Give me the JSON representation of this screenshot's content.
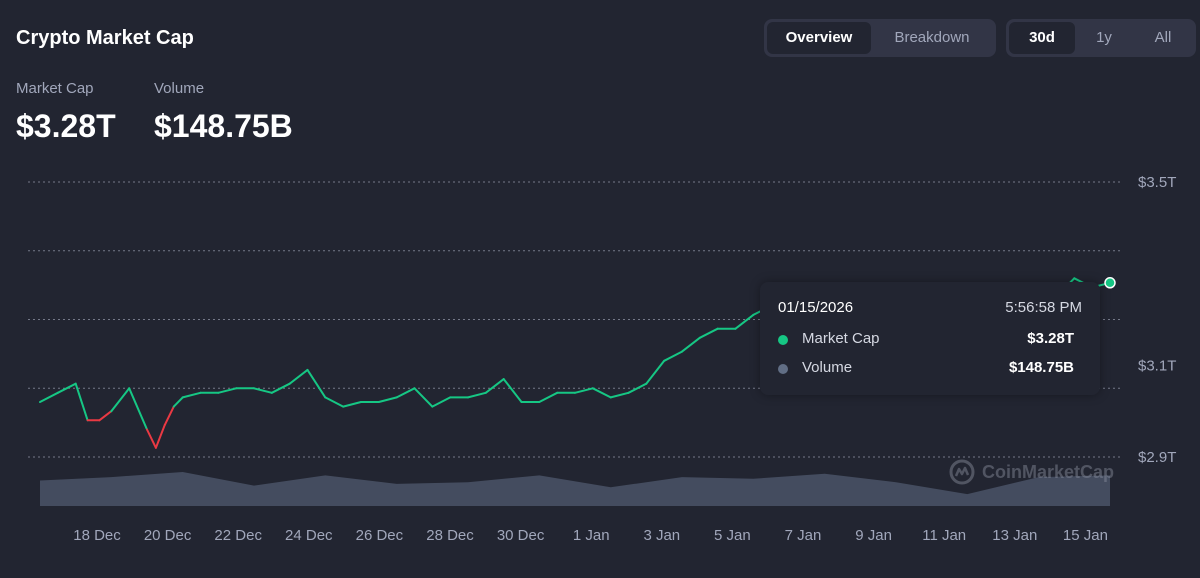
{
  "header": {
    "title": "Crypto Market Cap",
    "view_tabs": [
      {
        "label": "Overview",
        "active": true
      },
      {
        "label": "Breakdown",
        "active": false
      }
    ],
    "range_tabs": [
      {
        "label": "30d",
        "active": true
      },
      {
        "label": "1y",
        "active": false
      },
      {
        "label": "All",
        "active": false
      }
    ]
  },
  "stats": {
    "market_cap_label": "Market Cap",
    "market_cap_value": "$3.28T",
    "volume_label": "Volume",
    "volume_value": "$148.75B"
  },
  "tooltip": {
    "date": "01/15/2026",
    "time": "5:56:58 PM",
    "rows": [
      {
        "name": "Market Cap",
        "value": "$3.28T",
        "color": "#16c784"
      },
      {
        "name": "Volume",
        "value": "$148.75B",
        "color": "#616e85"
      }
    ]
  },
  "watermark": {
    "text": "CoinMarketCap"
  },
  "colors": {
    "up": "#16c784",
    "down": "#ea3943",
    "volume": "#616e85",
    "grid": "#8a8f9f",
    "background": "#222531"
  },
  "chart_data": {
    "type": "line",
    "x_tick_labels": [
      "18 Dec",
      "20 Dec",
      "22 Dec",
      "24 Dec",
      "26 Dec",
      "28 Dec",
      "30 Dec",
      "1 Jan",
      "3 Jan",
      "5 Jan",
      "7 Jan",
      "9 Jan",
      "11 Jan",
      "13 Jan",
      "15 Jan"
    ],
    "x_range": [
      "2025-12-16",
      "2026-01-15"
    ],
    "y_ticks": [
      {
        "value": 3.5,
        "label": "$3.5T"
      },
      {
        "value": 3.1,
        "label": "$3.1T"
      },
      {
        "value": 2.9,
        "label": "$2.9T"
      }
    ],
    "ylim": [
      2.9,
      3.5
    ],
    "grid": true,
    "baseline": 3.0,
    "series": [
      {
        "name": "Market Cap",
        "unit": "trillion USD",
        "x": [
          "2025-12-16",
          "2025-12-16 12:00",
          "2025-12-17",
          "2025-12-17 08:00",
          "2025-12-17 16:00",
          "2025-12-18",
          "2025-12-18 12:00",
          "2025-12-19",
          "2025-12-19 06:00",
          "2025-12-19 12:00",
          "2025-12-19 18:00",
          "2025-12-20",
          "2025-12-20 12:00",
          "2025-12-21",
          "2025-12-21 12:00",
          "2025-12-22",
          "2025-12-22 12:00",
          "2025-12-23",
          "2025-12-23 12:00",
          "2025-12-24",
          "2025-12-24 12:00",
          "2025-12-25",
          "2025-12-25 12:00",
          "2025-12-26",
          "2025-12-26 12:00",
          "2025-12-27",
          "2025-12-27 12:00",
          "2025-12-28",
          "2025-12-28 12:00",
          "2025-12-29",
          "2025-12-29 12:00",
          "2025-12-30",
          "2025-12-30 12:00",
          "2025-12-31",
          "2025-12-31 12:00",
          "2026-01-01",
          "2026-01-01 12:00",
          "2026-01-02",
          "2026-01-02 12:00",
          "2026-01-03",
          "2026-01-03 12:00",
          "2026-01-04",
          "2026-01-04 12:00",
          "2026-01-05",
          "2026-01-05 12:00",
          "2026-01-06",
          "2026-01-13 12:00",
          "2026-01-14",
          "2026-01-14 12:00",
          "2026-01-15"
        ],
        "y": [
          3.02,
          3.04,
          3.06,
          2.98,
          2.98,
          3.0,
          3.05,
          2.96,
          2.92,
          2.97,
          3.01,
          3.03,
          3.04,
          3.04,
          3.05,
          3.05,
          3.04,
          3.06,
          3.09,
          3.03,
          3.01,
          3.02,
          3.02,
          3.03,
          3.05,
          3.01,
          3.03,
          3.03,
          3.04,
          3.07,
          3.02,
          3.02,
          3.04,
          3.04,
          3.05,
          3.03,
          3.04,
          3.06,
          3.11,
          3.13,
          3.16,
          3.18,
          3.18,
          3.21,
          3.23,
          3.22,
          3.25,
          3.29,
          3.27,
          3.28
        ]
      },
      {
        "name": "Volume",
        "unit": "relative",
        "x": [
          "2025-12-16",
          "2025-12-18",
          "2025-12-20",
          "2025-12-22",
          "2025-12-24",
          "2025-12-26",
          "2025-12-28",
          "2025-12-30",
          "2026-01-01",
          "2026-01-03",
          "2026-01-05",
          "2026-01-07",
          "2026-01-09",
          "2026-01-11",
          "2026-01-13",
          "2026-01-15"
        ],
        "y": [
          0.75,
          0.85,
          1.0,
          0.6,
          0.9,
          0.65,
          0.7,
          0.9,
          0.55,
          0.85,
          0.8,
          0.95,
          0.7,
          0.35,
          0.85,
          0.9
        ]
      }
    ]
  }
}
